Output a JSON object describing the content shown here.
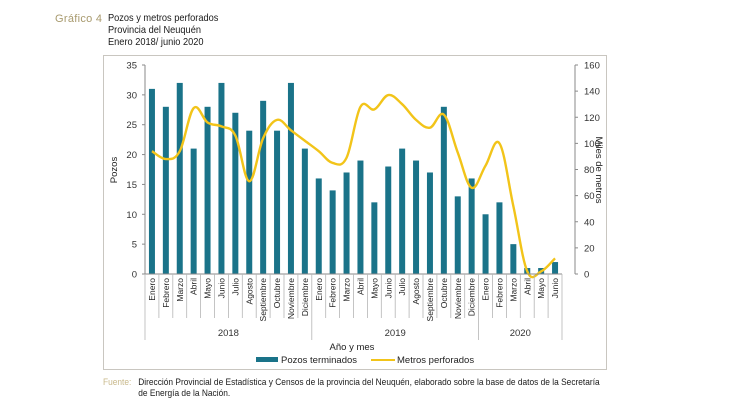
{
  "header": {
    "figure_label": "Gráfico 4",
    "title_lines": [
      "Pozos y metros perforados",
      "Provincia del Neuquén",
      "Enero 2018/ junio 2020"
    ]
  },
  "source": {
    "label": "Fuente:",
    "lines": [
      "Dirección Provincial de Estadística y Censos de la provincia del Neuquén, elaborado sobre la base de datos de la Secretaría",
      "de Energía de la Nación."
    ]
  },
  "colors": {
    "bars": "#1a7389",
    "line": "#f2c419",
    "frame": "#c9c6c0",
    "figure_label": "#a89a6e"
  },
  "chart_data": {
    "type": "bar+line",
    "title": "Pozos y metros perforados",
    "xlabel": "Año y mes",
    "ylabel": "Pozos",
    "y2label": "Miles de metros",
    "ylim": [
      0,
      35
    ],
    "yticks": [
      0,
      5,
      10,
      15,
      20,
      25,
      30,
      35
    ],
    "y2lim": [
      0,
      160
    ],
    "y2ticks": [
      0,
      20,
      40,
      60,
      80,
      100,
      120,
      140,
      160
    ],
    "grid": false,
    "legend_position": "bottom-center",
    "groups": [
      {
        "label": "2018",
        "count": 12
      },
      {
        "label": "2019",
        "count": 12
      },
      {
        "label": "2020",
        "count": 6
      }
    ],
    "categories": [
      "Enero",
      "Febrero",
      "Marzo",
      "Abril",
      "Mayo",
      "Junio",
      "Julio",
      "Agosto",
      "Septiembre",
      "Octubre",
      "Noviembre",
      "Diciembre",
      "Enero",
      "Febrero",
      "Marzo",
      "Abril",
      "Mayo",
      "Junio",
      "Julio",
      "Agosto",
      "Septiembre",
      "Octubre",
      "Noviembre",
      "Diciembre",
      "Enero",
      "Febrero",
      "Marzo",
      "Abril",
      "Mayo",
      "Junio"
    ],
    "series": [
      {
        "name": "Pozos terminados",
        "type": "bar",
        "axis": "left",
        "values": [
          31,
          28,
          32,
          21,
          28,
          32,
          27,
          24,
          29,
          24,
          32,
          21,
          16,
          14,
          17,
          19,
          12,
          18,
          21,
          19,
          17,
          28,
          13,
          16,
          10,
          12,
          5,
          1,
          1,
          2
        ]
      },
      {
        "name": "Metros perforados",
        "type": "line",
        "axis": "right",
        "values": [
          94,
          88,
          94,
          127,
          116,
          113,
          106,
          71,
          104,
          118,
          110,
          102,
          94,
          85,
          89,
          128,
          126,
          137,
          130,
          118,
          112,
          122,
          93,
          66,
          83,
          100,
          52,
          2,
          2,
          12
        ]
      }
    ]
  }
}
